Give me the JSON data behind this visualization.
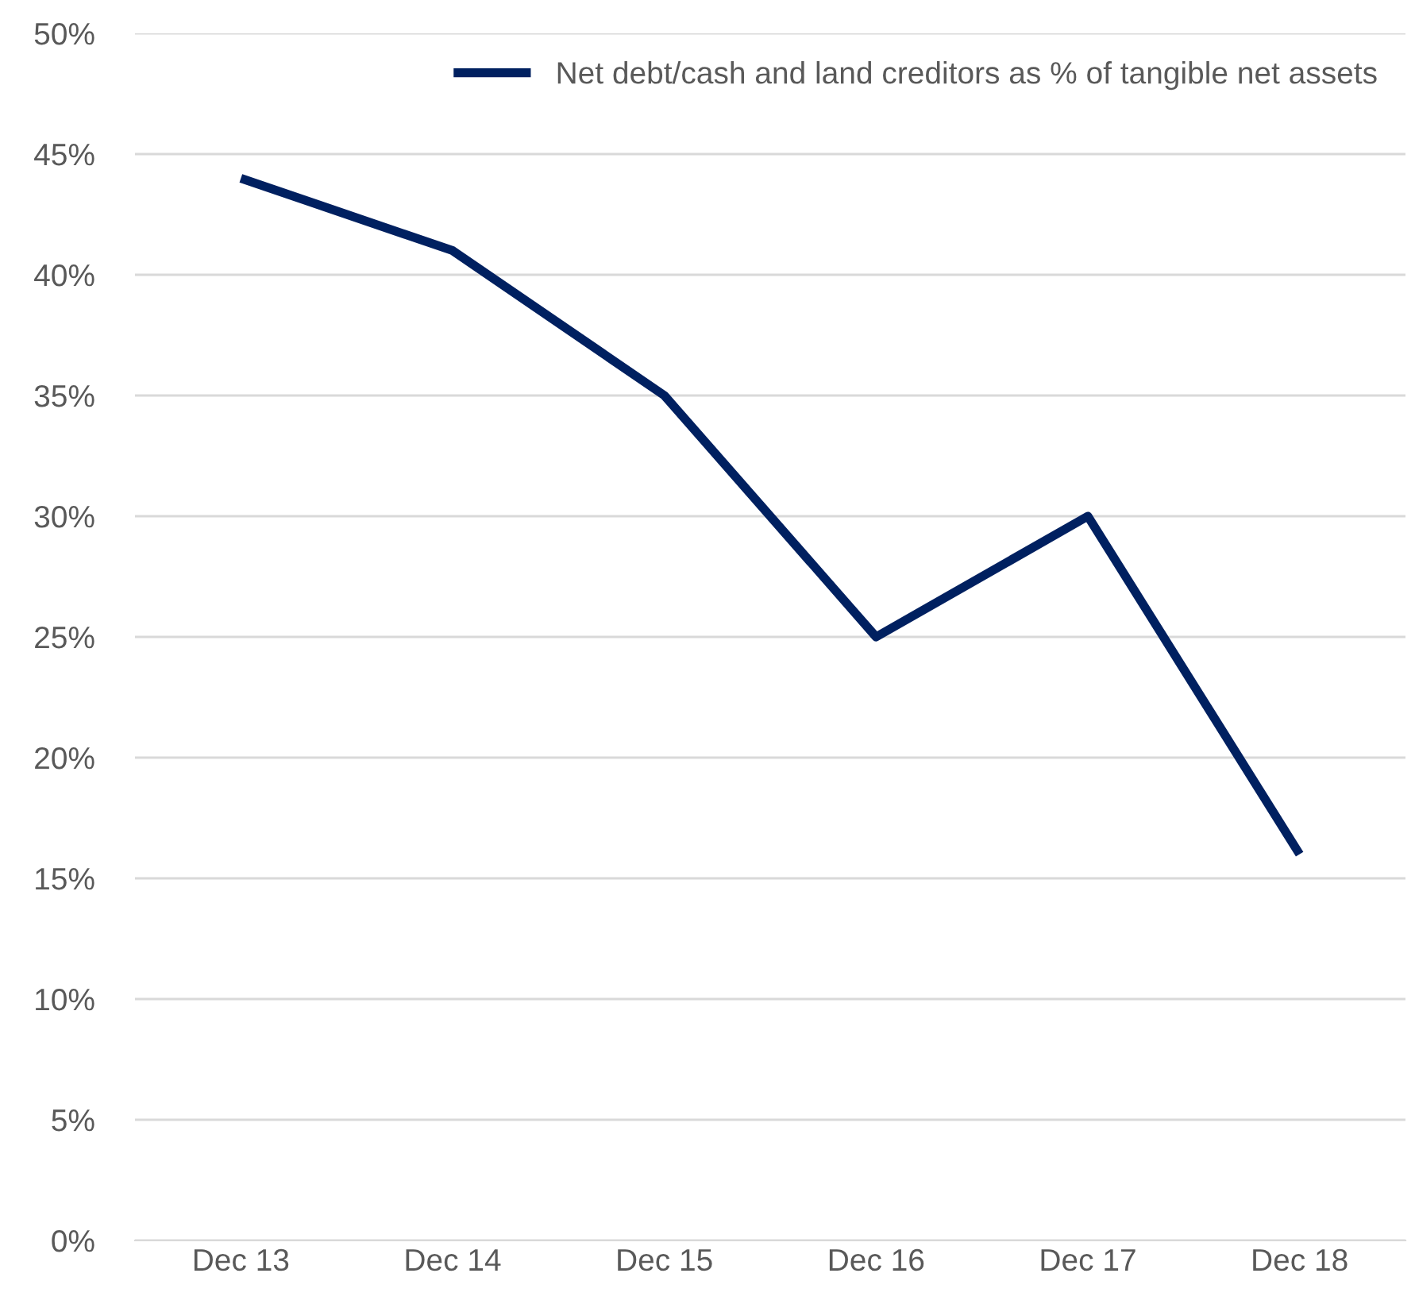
{
  "chart_data": {
    "type": "line",
    "categories": [
      "Dec 13",
      "Dec 14",
      "Dec 15",
      "Dec 16",
      "Dec 17",
      "Dec 18"
    ],
    "series": [
      {
        "name": "Net debt/cash and land creditors as % of tangible net assets",
        "color": "#002060",
        "values": [
          44,
          41,
          35,
          25,
          30,
          16
        ]
      }
    ],
    "ylim": [
      0,
      50
    ],
    "yticks": [
      {
        "value": 0,
        "label": "0%"
      },
      {
        "value": 5,
        "label": "5%"
      },
      {
        "value": 10,
        "label": "10%"
      },
      {
        "value": 15,
        "label": "15%"
      },
      {
        "value": 20,
        "label": "20%"
      },
      {
        "value": 25,
        "label": "25%"
      },
      {
        "value": 30,
        "label": "30%"
      },
      {
        "value": 35,
        "label": "35%"
      },
      {
        "value": 40,
        "label": "40%"
      },
      {
        "value": 45,
        "label": "45%"
      },
      {
        "value": 50,
        "label": "50%"
      }
    ],
    "grid": "y",
    "legend": "top right",
    "marker": "none",
    "line_style": "solid"
  }
}
